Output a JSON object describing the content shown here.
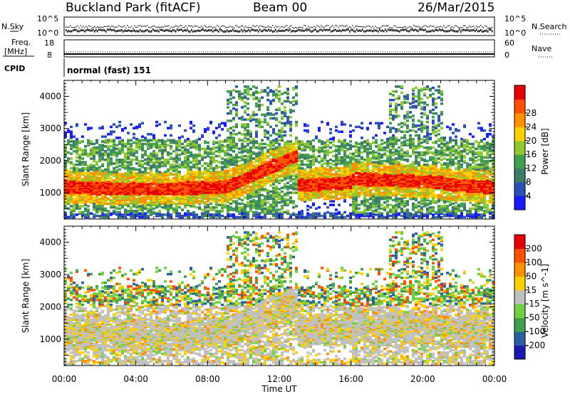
{
  "header": {
    "site": "Buckland Park (fitACF)",
    "beam": "Beam 00",
    "date": "26/Mar/2015"
  },
  "panels": {
    "nsky_label": "N.Sky",
    "nsky_ticks": [
      "10^5",
      "10^0"
    ],
    "nsearch_label": "N.Search",
    "nsearch_ticks": [
      "10^5",
      "10^0"
    ],
    "freq_label_1": "Freq.",
    "freq_label_2": "[MHz]",
    "freq_ticks": [
      "18",
      "8"
    ],
    "nave_label": "Nave",
    "nave_ticks": [
      "60",
      "0"
    ],
    "cpid_label": "CPID",
    "cpid_value": "normal (fast) 151"
  },
  "chart_data": [
    {
      "type": "heatmap",
      "title": "",
      "ylabel": "Slant Range [km]",
      "y_ticks": [
        "1000",
        "2000",
        "3000",
        "4000"
      ],
      "ylim": [
        180,
        4500
      ],
      "xlim_hours": [
        0,
        24
      ],
      "colorbar_label": "Power [dB]",
      "colorbar_ticks": [
        "4",
        "8",
        "12",
        "16",
        "20",
        "24",
        "28"
      ],
      "colorbar_colors": [
        "#1a1aff",
        "#2a4fb8",
        "#3c7d6a",
        "#40a050",
        "#90c830",
        "#ffd000",
        "#ff9000",
        "#ff5000",
        "#e80000"
      ]
    },
    {
      "type": "heatmap",
      "title": "",
      "ylabel": "Slant Range [km]",
      "y_ticks": [
        "1000",
        "2000",
        "3000",
        "4000"
      ],
      "ylim": [
        180,
        4500
      ],
      "xlim_hours": [
        0,
        24
      ],
      "colorbar_label": "Velocity [m s^-1]",
      "colorbar_ticks": [
        "200",
        "100",
        "50",
        "15",
        "-15",
        "-50",
        "-100",
        "-200"
      ],
      "colorbar_colors": [
        "#1a1ab0",
        "#2a60a0",
        "#40a050",
        "#70d040",
        "#c0c0c0",
        "#ffd000",
        "#ff9000",
        "#ff5000",
        "#e80000"
      ]
    }
  ],
  "x_ticks": [
    "00:00",
    "04:00",
    "08:00",
    "12:00",
    "16:00",
    "20:00",
    "00:00"
  ],
  "xlabel": "Time UT"
}
